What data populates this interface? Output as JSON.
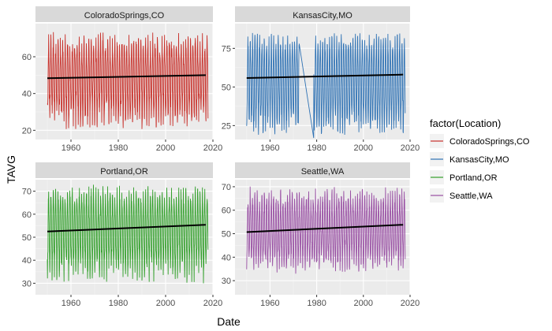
{
  "chart_data": {
    "type": "line",
    "layout": "facet_wrap",
    "xlabel": "Date",
    "ylabel": "TAVG",
    "x_ticks": [
      "1960",
      "1980",
      "2000",
      "2020"
    ],
    "xlim": [
      1945,
      2020
    ],
    "legend": {
      "title": "factor(Location)",
      "placement": "right",
      "entries": [
        {
          "label": "ColoradoSprings,CO",
          "color": "#c8302a"
        },
        {
          "label": "KansasCity,MO",
          "color": "#2f72b4"
        },
        {
          "label": "Portland,OR",
          "color": "#33a02c"
        },
        {
          "label": "Seattle,WA",
          "color": "#984ea3"
        }
      ]
    },
    "panels": [
      {
        "title": "ColoradoSprings,CO",
        "color": "#c8302a",
        "ylim": [
          15,
          78
        ],
        "y_ticks": [
          20,
          40,
          60
        ],
        "x_range": [
          1950,
          2017
        ],
        "summer_range": [
          61,
          74
        ],
        "winter_range": [
          20,
          36
        ],
        "trend": [
          [
            1950,
            48.3
          ],
          [
            2017,
            50.0
          ]
        ],
        "gaps": []
      },
      {
        "title": "KansasCity,MO",
        "color": "#2f72b4",
        "ylim": [
          16,
          91
        ],
        "y_ticks": [
          25,
          50,
          75
        ],
        "x_range": [
          1950,
          2017
        ],
        "summer_range": [
          74,
          86
        ],
        "winter_range": [
          18,
          35
        ],
        "trend": [
          [
            1950,
            55.8
          ],
          [
            2017,
            58.0
          ]
        ],
        "gaps": [
          {
            "from": [
              1972.5,
              78
            ],
            "to": [
              1978.7,
              17
            ]
          }
        ]
      },
      {
        "title": "Portland,OR",
        "color": "#33a02c",
        "ylim": [
          25,
          75
        ],
        "y_ticks": [
          30,
          40,
          50,
          60,
          70
        ],
        "x_range": [
          1950,
          2017
        ],
        "summer_range": [
          64,
          73
        ],
        "winter_range": [
          30,
          42
        ],
        "trend": [
          [
            1950,
            52.5
          ],
          [
            2017,
            55.4
          ]
        ],
        "gaps": []
      },
      {
        "title": "Seattle,WA",
        "color": "#984ea3",
        "ylim": [
          24,
          73
        ],
        "y_ticks": [
          30,
          40,
          50,
          60,
          70
        ],
        "x_range": [
          1950,
          2017
        ],
        "summer_range": [
          61,
          70
        ],
        "winter_range": [
          33,
          43
        ],
        "trend": [
          [
            1950,
            50.7
          ],
          [
            2017,
            53.8
          ]
        ],
        "gaps": []
      }
    ]
  }
}
